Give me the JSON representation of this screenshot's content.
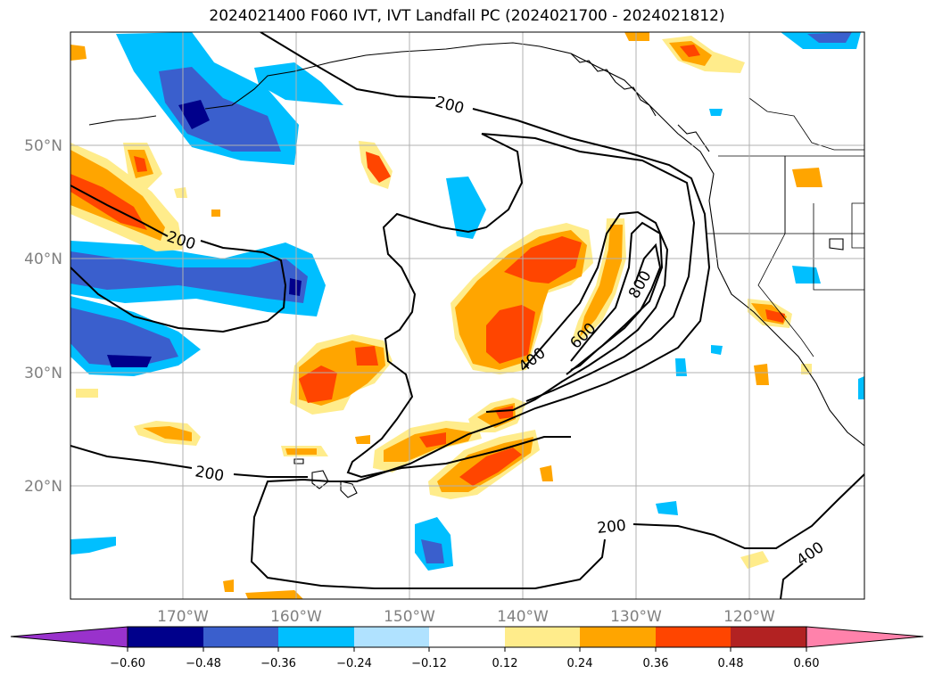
{
  "title": "2024021400 F060 IVT, IVT Landfall PC (2024021700 - 2024021812)",
  "map": {
    "lon_labels": [
      "170°W",
      "160°W",
      "150°W",
      "140°W",
      "130°W",
      "120°W"
    ],
    "lat_labels": [
      "50°N",
      "40°N",
      "30°N",
      "20°N"
    ],
    "contour_labels": [
      "200",
      "200",
      "200",
      "200",
      "400",
      "400",
      "600",
      "800"
    ]
  },
  "colorbar": {
    "ticks": [
      "−0.60",
      "−0.48",
      "−0.36",
      "−0.24",
      "−0.12",
      "0.12",
      "0.24",
      "0.36",
      "0.48",
      "0.60"
    ],
    "colors": [
      "#9932cc",
      "#00008b",
      "#3a5fcd",
      "#00bfff",
      "#b0e2ff",
      "#ffffff",
      "#ffec8b",
      "#ffa500",
      "#ff4500",
      "#b22222",
      "#ff82ab"
    ]
  }
}
